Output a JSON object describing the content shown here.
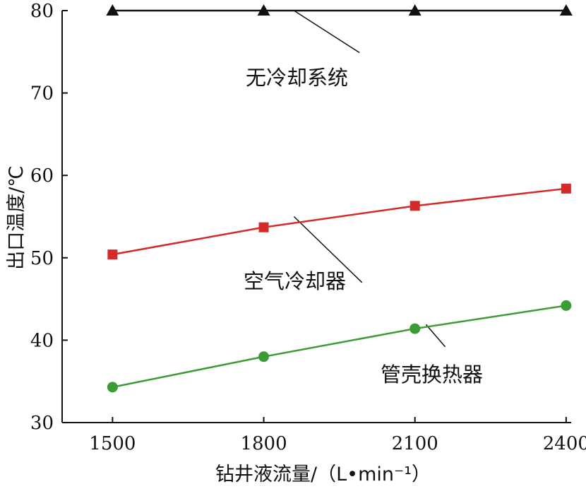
{
  "chart_data": {
    "type": "line",
    "xlabel": "钻井液流量/（L•min⁻¹）",
    "ylabel": "出口温度/℃",
    "x": [
      1500,
      1800,
      2100,
      2400
    ],
    "xticks": [
      "1500",
      "1800",
      "2100",
      "2400"
    ],
    "xlim": [
      1400,
      2410
    ],
    "ylim": [
      30,
      80
    ],
    "yticks": [
      "30",
      "40",
      "50",
      "60",
      "70",
      "80"
    ],
    "grid": false,
    "legend": "none",
    "series": [
      {
        "name": "无冷却系统",
        "values": [
          80.0,
          80.0,
          80.0,
          80.0
        ],
        "color": "#111111",
        "marker": "triangle"
      },
      {
        "name": "空气冷却器",
        "values": [
          50.4,
          53.7,
          56.3,
          58.4
        ],
        "color": "#d42a2a",
        "marker": "square"
      },
      {
        "name": "管壳换热器",
        "values": [
          34.3,
          38.0,
          41.4,
          44.2
        ],
        "color": "#3b9b35",
        "marker": "circle"
      }
    ]
  }
}
